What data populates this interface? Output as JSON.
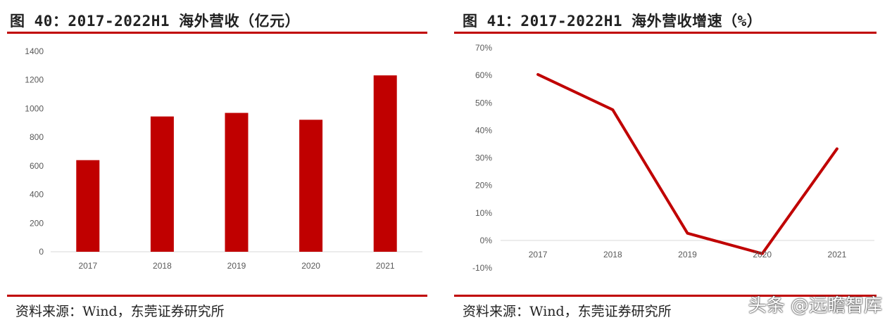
{
  "left": {
    "title": "图 40：2017-2022H1 海外营收（亿元）",
    "source": "资料来源：Wind，东莞证券研究所",
    "chart_data": {
      "type": "bar",
      "categories": [
        "2017",
        "2018",
        "2019",
        "2020",
        "2021"
      ],
      "values": [
        640,
        945,
        970,
        922,
        1232
      ],
      "ylim": [
        0,
        1400
      ],
      "yticks": [
        0,
        200,
        400,
        600,
        800,
        1000,
        1200,
        1400
      ],
      "ytick_labels": [
        "0",
        "200",
        "400",
        "600",
        "800",
        "1000",
        "1200",
        "1400"
      ],
      "bar_color": "#c00000",
      "grid": false
    }
  },
  "right": {
    "title": "图 41：2017-2022H1 海外营收增速（%）",
    "source": "资料来源：Wind，东莞证券研究所",
    "chart_data": {
      "type": "line",
      "categories": [
        "2017",
        "2018",
        "2019",
        "2020",
        "2021"
      ],
      "values": [
        60.3,
        47.5,
        2.6,
        -4.8,
        33.3
      ],
      "ylim": [
        -10,
        70
      ],
      "yticks": [
        -10,
        0,
        10,
        20,
        30,
        40,
        50,
        60,
        70
      ],
      "ytick_labels": [
        "-10%",
        "0%",
        "10%",
        "20%",
        "30%",
        "40%",
        "50%",
        "60%",
        "70%"
      ],
      "line_color": "#c00000",
      "grid": false
    }
  },
  "watermark": "头条 @远瞻智库"
}
